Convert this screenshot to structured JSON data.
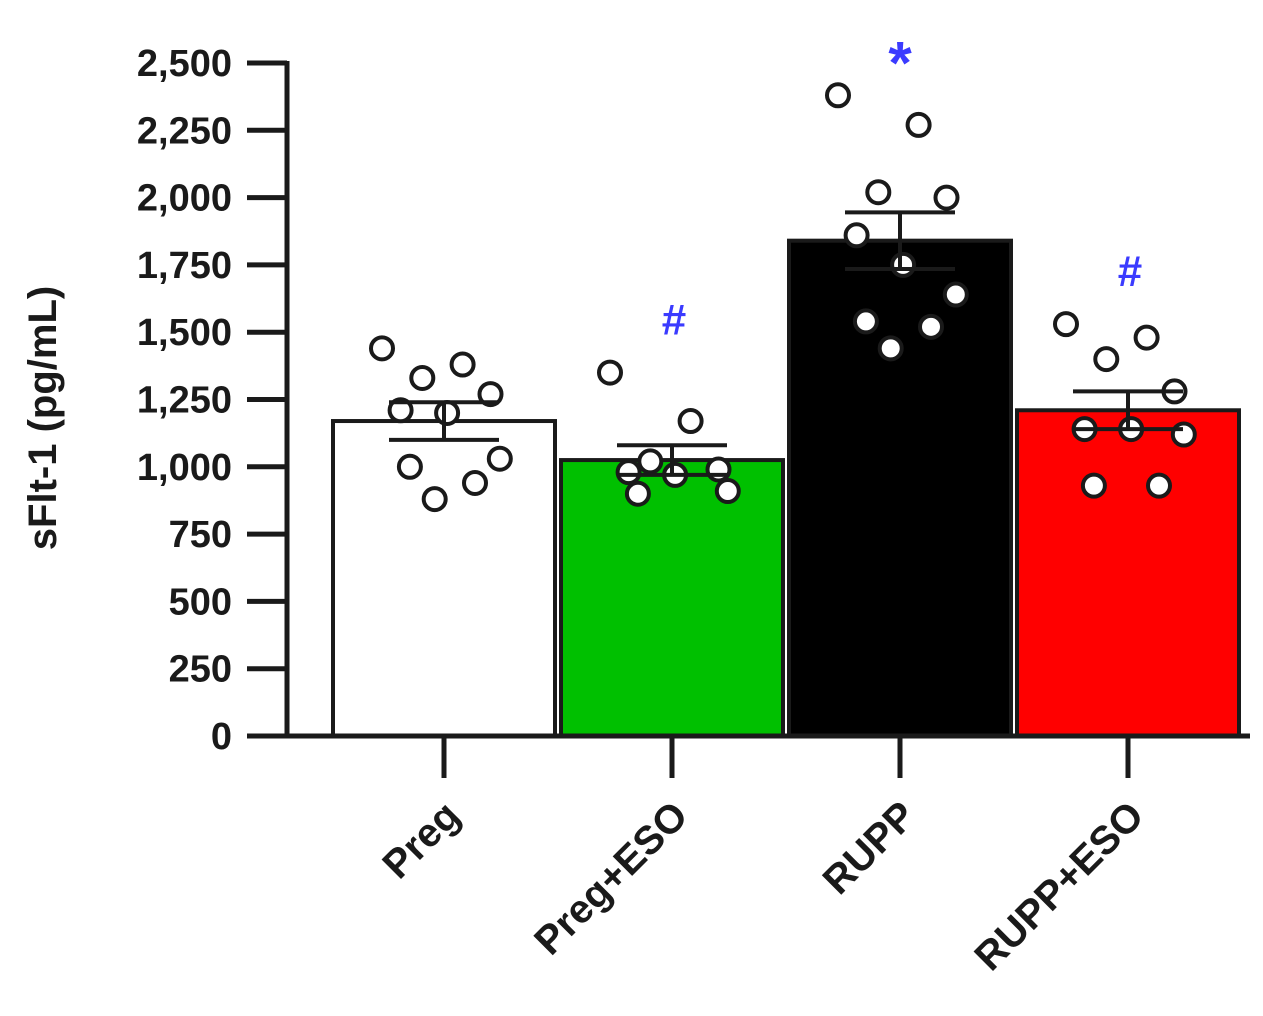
{
  "chart_data": {
    "type": "bar",
    "title": "",
    "xlabel": "",
    "ylabel": "sFlt-1 (pg/mL)",
    "ylim": [
      0,
      2500
    ],
    "yticks": [
      0,
      250,
      500,
      750,
      1000,
      1250,
      1500,
      1750,
      2000,
      2250,
      2500
    ],
    "ytick_labels": [
      "0",
      "250",
      "500",
      "750",
      "1,000",
      "1,250",
      "1,500",
      "1,750",
      "2,000",
      "2,250",
      "2,500"
    ],
    "categories": [
      "Preg",
      "Preg+ESO",
      "RUPP",
      "RUPP+ESO"
    ],
    "values": [
      1170,
      1025,
      1840,
      1210
    ],
    "sem": [
      70,
      55,
      105,
      70
    ],
    "bar_colors": [
      "#ffffff",
      "#00c000",
      "#000000",
      "#ff0000"
    ],
    "point_color": "#ffffff",
    "points": [
      [
        1440,
        1380,
        1330,
        1270,
        1210,
        1200,
        1030,
        1000,
        940,
        880
      ],
      [
        1350,
        1170,
        1020,
        990,
        980,
        970,
        910,
        900
      ],
      [
        2380,
        2270,
        2020,
        2000,
        1860,
        1750,
        1640,
        1540,
        1520,
        1440
      ],
      [
        1530,
        1480,
        1400,
        1280,
        1140,
        1140,
        1120,
        930,
        930
      ]
    ],
    "significance": [
      "",
      "#",
      "*",
      "#"
    ],
    "significance_color": "#3b3bff",
    "grid": false,
    "legend": "none"
  }
}
